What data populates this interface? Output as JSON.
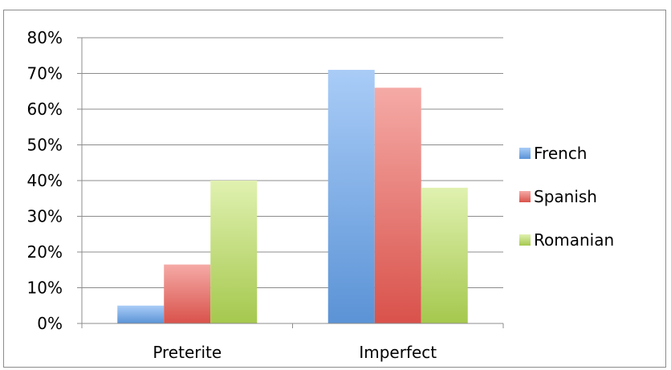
{
  "chart_data": {
    "type": "bar",
    "categories": [
      "Preterite",
      "Imperfect"
    ],
    "series": [
      {
        "name": "French",
        "values": [
          5,
          71
        ],
        "color": "#5b93d6",
        "color_light": "#a9ccf7"
      },
      {
        "name": "Spanish",
        "values": [
          16.5,
          66
        ],
        "color": "#d9524b",
        "color_light": "#f5aaa6"
      },
      {
        "name": "Romanian",
        "values": [
          40,
          38
        ],
        "color": "#a5c84e",
        "color_light": "#e0f1b0"
      }
    ],
    "ylim": [
      0,
      80
    ],
    "yticks": [
      0,
      10,
      20,
      30,
      40,
      50,
      60,
      70,
      80
    ],
    "ytick_labels": [
      "0%",
      "10%",
      "20%",
      "30%",
      "40%",
      "50%",
      "60%",
      "70%",
      "80%"
    ],
    "grid": true,
    "legend_position": "right",
    "title": "",
    "xlabel": "",
    "ylabel": ""
  }
}
